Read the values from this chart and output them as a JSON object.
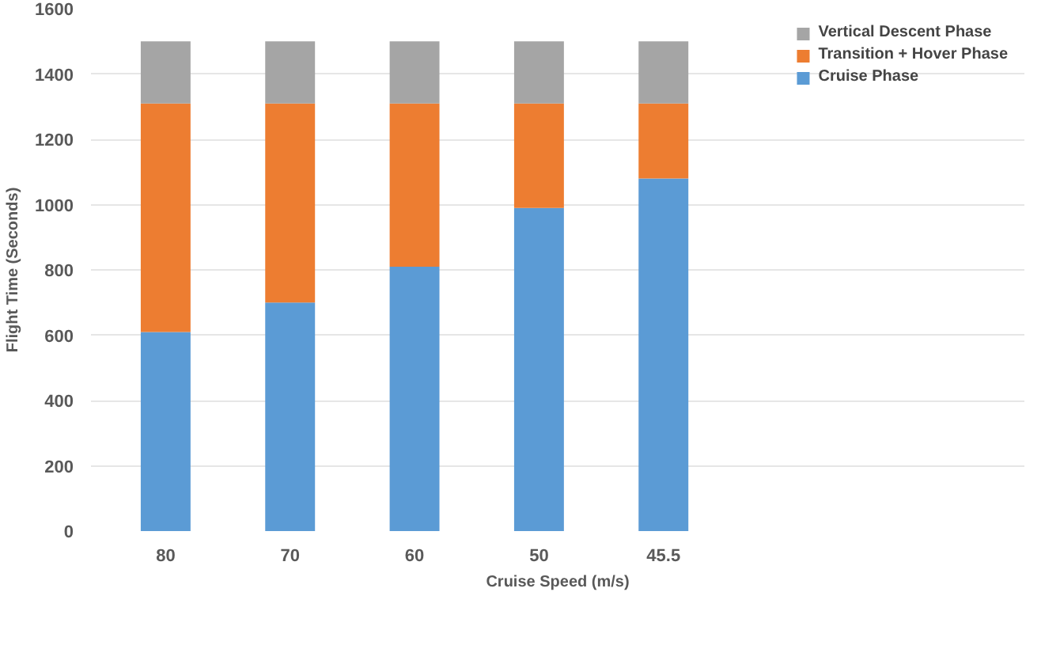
{
  "chart_data": {
    "type": "bar",
    "stacked": true,
    "xlabel": "Cruise Speed (m/s)",
    "ylabel": "Flight Time (Seconds)",
    "categories": [
      "80",
      "70",
      "60",
      "50",
      "45.5"
    ],
    "series": [
      {
        "name": "Cruise Phase",
        "color": "#5b9bd5",
        "values": [
          610,
          700,
          810,
          990,
          1080
        ]
      },
      {
        "name": "Transition + Hover Phase",
        "color": "#ed7d31",
        "values": [
          700,
          610,
          500,
          320,
          230
        ]
      },
      {
        "name": "Vertical Descent Phase",
        "color": "#a5a5a5",
        "values": [
          190,
          190,
          190,
          190,
          190
        ]
      }
    ],
    "ylim": [
      0,
      1600
    ],
    "yticks": [
      0,
      200,
      400,
      600,
      800,
      1000,
      1200,
      1400,
      1600
    ],
    "grid": "y",
    "legend": "right"
  }
}
